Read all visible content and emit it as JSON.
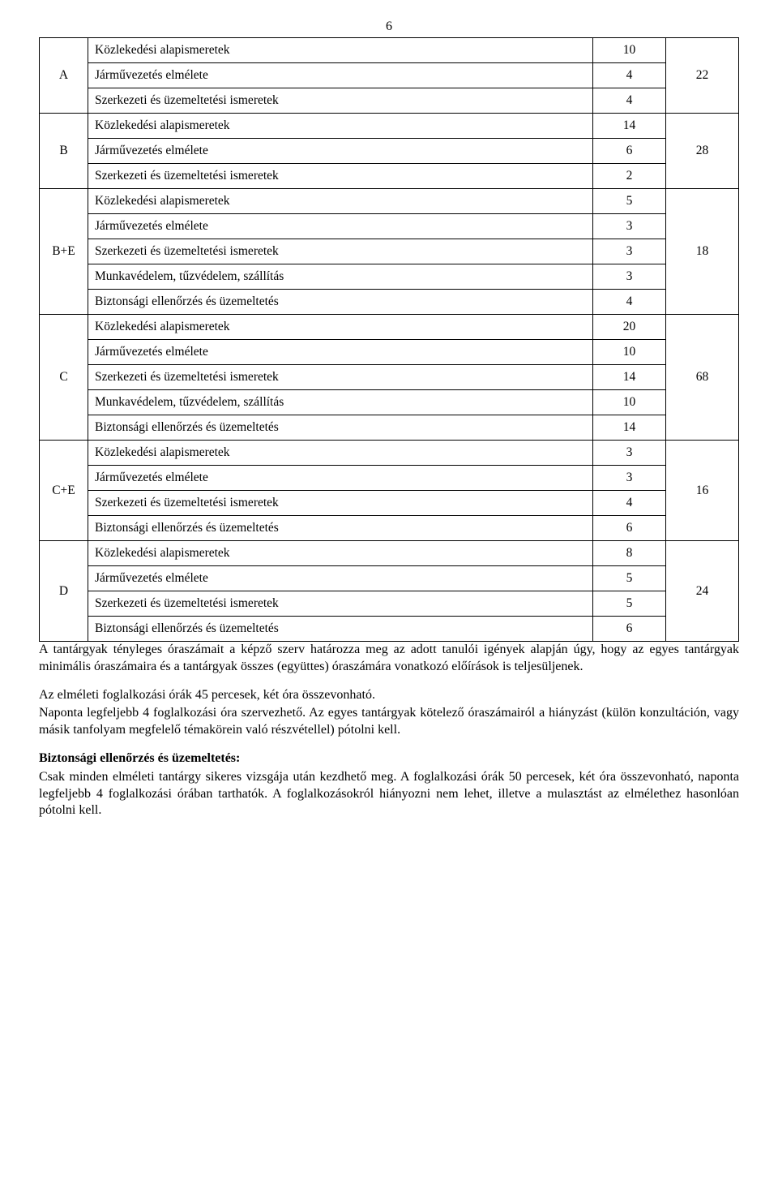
{
  "pageNumber": "6",
  "table": {
    "columns": {
      "catWidth": 60,
      "valWidth": 90,
      "totalWidth": 90
    },
    "groups": [
      {
        "category": "A",
        "total": "22",
        "rows": [
          {
            "subject": "Közlekedési alapismeretek",
            "value": "10"
          },
          {
            "subject": "Járművezetés elmélete",
            "value": "4"
          },
          {
            "subject": "Szerkezeti és üzemeltetési ismeretek",
            "value": "4"
          }
        ]
      },
      {
        "category": "B",
        "total": "28",
        "rows": [
          {
            "subject": "Közlekedési alapismeretek",
            "value": "14"
          },
          {
            "subject": "Járművezetés elmélete",
            "value": "6"
          },
          {
            "subject": "Szerkezeti és üzemeltetési ismeretek",
            "value": "2"
          }
        ]
      },
      {
        "category": "B+E",
        "total": "18",
        "rows": [
          {
            "subject": "Közlekedési alapismeretek",
            "value": "5"
          },
          {
            "subject": "Járművezetés elmélete",
            "value": "3"
          },
          {
            "subject": "Szerkezeti és üzemeltetési ismeretek",
            "value": "3"
          },
          {
            "subject": "Munkavédelem, tűzvédelem, szállítás",
            "value": "3"
          },
          {
            "subject": "Biztonsági ellenőrzés és üzemeltetés",
            "value": "4"
          }
        ]
      },
      {
        "category": "C",
        "total": "68",
        "rows": [
          {
            "subject": "Közlekedési alapismeretek",
            "value": "20"
          },
          {
            "subject": "Járművezetés elmélete",
            "value": "10"
          },
          {
            "subject": "Szerkezeti és üzemeltetési ismeretek",
            "value": "14"
          },
          {
            "subject": "Munkavédelem, tűzvédelem, szállítás",
            "value": "10"
          },
          {
            "subject": "Biztonsági ellenőrzés és üzemeltetés",
            "value": "14"
          }
        ]
      },
      {
        "category": "C+E",
        "total": "16",
        "rows": [
          {
            "subject": "Közlekedési alapismeretek",
            "value": "3"
          },
          {
            "subject": "Járművezetés elmélete",
            "value": "3"
          },
          {
            "subject": "Szerkezeti és üzemeltetési ismeretek",
            "value": "4"
          },
          {
            "subject": "Biztonsági ellenőrzés és üzemeltetés",
            "value": "6"
          }
        ]
      },
      {
        "category": "D",
        "total": "24",
        "rows": [
          {
            "subject": "Közlekedési alapismeretek",
            "value": "8"
          },
          {
            "subject": "Járművezetés elmélete",
            "value": "5"
          },
          {
            "subject": "Szerkezeti és üzemeltetési ismeretek",
            "value": "5"
          },
          {
            "subject": "Biztonsági ellenőrzés és üzemeltetés",
            "value": "6"
          }
        ]
      }
    ]
  },
  "paragraphs": {
    "p1": "A tantárgyak tényleges óraszámait a képző szerv határozza meg az adott tanulói igények alapján úgy, hogy az egyes tantárgyak minimális óraszámaira és a tantárgyak összes (együttes) óraszámára vonatkozó előírások is teljesüljenek.",
    "p2a": "Az elméleti foglalkozási órák 45 percesek, két óra összevonható.",
    "p2b": "Naponta legfeljebb 4 foglalkozási óra szervezhető. Az egyes tantárgyak kötelező óraszámairól a hiányzást (külön konzultáción, vagy másik tanfolyam megfelelő témakörein való részvétellel) pótolni kell.",
    "p3heading": "Biztonsági ellenőrzés és üzemeltetés:",
    "p3": "Csak minden elméleti tantárgy sikeres vizsgája után kezdhető meg. A foglalkozási órák 50 percesek, két óra összevonható, naponta legfeljebb 4 foglalkozási órában tarthatók. A foglalkozásokról hiányozni nem lehet, illetve a mulasztást az elmélethez hasonlóan pótolni kell."
  }
}
